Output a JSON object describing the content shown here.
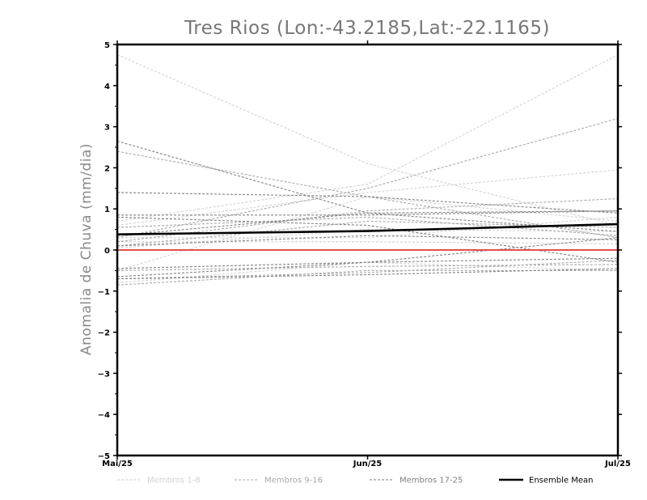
{
  "chart_data": {
    "type": "line",
    "title": "Tres Rios (Lon:-43.2185,Lat:-22.1165)",
    "xlabel": "",
    "ylabel": "Anomalia de Chuva (mm/dia)",
    "categories": [
      "Mai/25",
      "Jun/25",
      "Jul/25"
    ],
    "ylim": [
      -5,
      5
    ],
    "yticks": [
      "5",
      "4",
      "3",
      "2",
      "1",
      "0",
      "−1",
      "−2",
      "−3",
      "−4",
      "−5"
    ],
    "ytick_values": [
      5,
      4,
      3,
      2,
      1,
      0,
      -1,
      -2,
      -3,
      -4,
      -5
    ],
    "zero_line_color": "#e05050",
    "legend_position": "bottom",
    "legend": [
      {
        "label": "Membros 1-8",
        "color": "#d2d2d2",
        "dashed": true
      },
      {
        "label": "Membros 9-16",
        "color": "#a8a8a8",
        "dashed": true
      },
      {
        "label": "Membros 17-25",
        "color": "#828282",
        "dashed": true
      },
      {
        "label": "Ensemble Mean",
        "color": "#000000",
        "dashed": false
      }
    ],
    "series_groups": [
      {
        "name": "Membros 1-8",
        "color": "#d2d2d2",
        "members": [
          [
            4.75,
            2.1,
            0.6
          ],
          [
            0.7,
            1.6,
            4.75
          ],
          [
            0.6,
            1.4,
            1.95
          ],
          [
            -0.5,
            1.3,
            0.7
          ],
          [
            0.3,
            0.3,
            0.8
          ],
          [
            0.2,
            0.2,
            0.15
          ],
          [
            -0.8,
            -0.3,
            -0.5
          ],
          [
            0.05,
            0.5,
            0.45
          ]
        ]
      },
      {
        "name": "Membros 9-16",
        "color": "#a8a8a8",
        "members": [
          [
            0.3,
            1.5,
            3.2
          ],
          [
            2.4,
            1.3,
            0.3
          ],
          [
            0.2,
            0.95,
            1.25
          ],
          [
            -0.7,
            -0.55,
            -0.25
          ],
          [
            0.1,
            0.7,
            0.55
          ],
          [
            -0.5,
            -0.4,
            -0.35
          ],
          [
            -0.85,
            -0.5,
            -0.5
          ],
          [
            0.55,
            0.8,
            0.35
          ]
        ]
      },
      {
        "name": "Membros 17-25",
        "color": "#828282",
        "members": [
          [
            2.65,
            0.9,
            0.95
          ],
          [
            1.4,
            1.3,
            0.9
          ],
          [
            0.85,
            0.85,
            0.95
          ],
          [
            0.35,
            0.9,
            0.45
          ],
          [
            -0.65,
            -0.3,
            0.3
          ],
          [
            -0.7,
            -0.6,
            -0.45
          ],
          [
            0.1,
            0.35,
            0.25
          ],
          [
            0.8,
            0.6,
            -0.3
          ],
          [
            -0.45,
            -0.3,
            -0.2
          ]
        ]
      }
    ],
    "ensemble_mean": {
      "name": "Ensemble Mean",
      "color": "#000000",
      "values": [
        0.38,
        0.46,
        0.63
      ]
    }
  }
}
